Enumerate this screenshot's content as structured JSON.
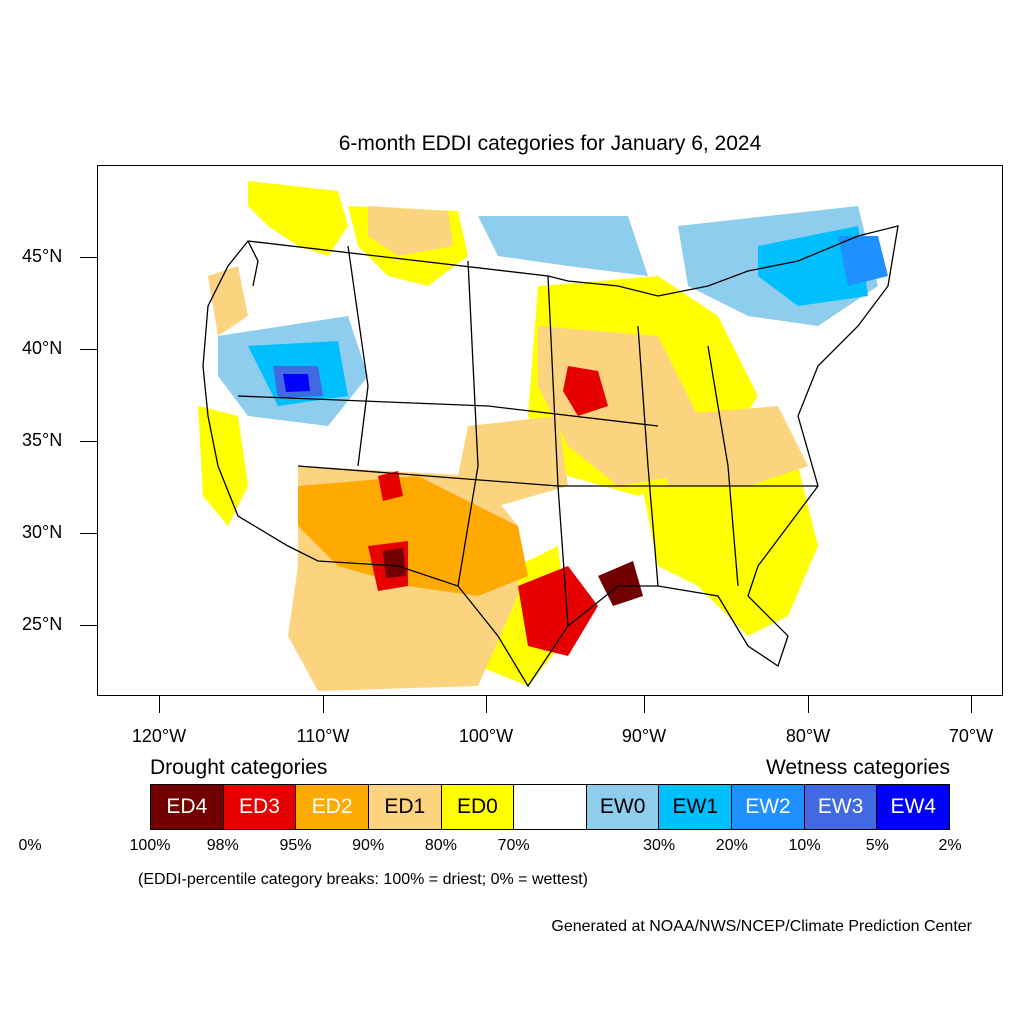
{
  "title": "6-month EDDI categories for January 6, 2024",
  "y_axis": {
    "ticks": [
      {
        "label": "45°N",
        "lat": 45
      },
      {
        "label": "40°N",
        "lat": 40
      },
      {
        "label": "35°N",
        "lat": 35
      },
      {
        "label": "30°N",
        "lat": 30
      },
      {
        "label": "25°N",
        "lat": 25
      }
    ]
  },
  "x_axis": {
    "ticks": [
      {
        "label": "120°W",
        "lon": -120
      },
      {
        "label": "110°W",
        "lon": -110
      },
      {
        "label": "100°W",
        "lon": -100
      },
      {
        "label": "90°W",
        "lon": -90
      },
      {
        "label": "80°W",
        "lon": -80
      },
      {
        "label": "70°W",
        "lon": -70
      }
    ]
  },
  "legend": {
    "drought_heading": "Drought categories",
    "wetness_heading": "Wetness categories",
    "categories": [
      {
        "label": "ED4",
        "color": "#730000",
        "text_color": "#ffffff"
      },
      {
        "label": "ED3",
        "color": "#e60000",
        "text_color": "#ffffff"
      },
      {
        "label": "ED2",
        "color": "#ffaa00",
        "text_color": "#ffffff"
      },
      {
        "label": "ED1",
        "color": "#fcd37f",
        "text_color": "#000000"
      },
      {
        "label": "ED0",
        "color": "#ffff00",
        "text_color": "#000000"
      },
      {
        "label": "",
        "color": "#ffffff",
        "text_color": "#000000"
      },
      {
        "label": "EW0",
        "color": "#8fcdee",
        "text_color": "#000000"
      },
      {
        "label": "EW1",
        "color": "#00bfff",
        "text_color": "#000000"
      },
      {
        "label": "EW2",
        "color": "#1e90ff",
        "text_color": "#ffffff"
      },
      {
        "label": "EW3",
        "color": "#4169e1",
        "text_color": "#ffffff"
      },
      {
        "label": "EW4",
        "color": "#0000ff",
        "text_color": "#ffffff"
      }
    ],
    "percentiles": [
      "100%",
      "98%",
      "95%",
      "90%",
      "80%",
      "70%",
      "30%",
      "20%",
      "10%",
      "5%",
      "2%",
      "0%"
    ]
  },
  "note": "(EDDI-percentile category breaks: 100% = driest; 0% = wettest)",
  "credit": "Generated at NOAA/NWS/NCEP/Climate Prediction Center"
}
